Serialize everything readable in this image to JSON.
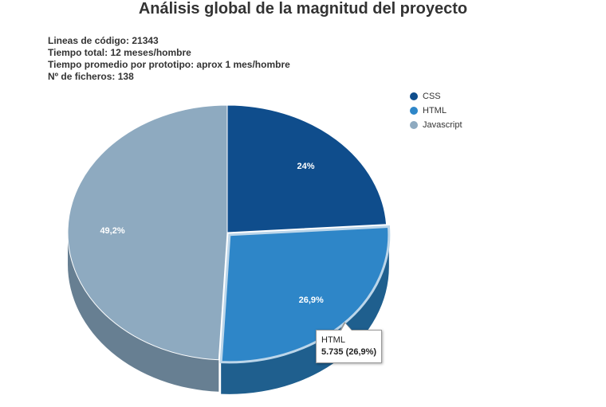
{
  "chart_data": {
    "type": "pie",
    "title": "Análisis global de la magnitud del proyecto",
    "subtitle_lines": [
      "Lineas de código: 21343",
      "Tiempo total: 12 meses/hombre",
      "Tiempo promedio por prototipo: aprox 1 mes/hombre",
      "Nº de ficheros: 138"
    ],
    "slices": [
      {
        "name": "CSS",
        "percent": 24,
        "label": "24%",
        "color": "#0f4d8c",
        "side_color": "#0a3662"
      },
      {
        "name": "HTML",
        "percent": 26.9,
        "label": "26,9%",
        "color": "#2e86c8",
        "side_color": "#1f5f8e"
      },
      {
        "name": "Javascript",
        "percent": 49.2,
        "label": "49,2%",
        "color": "#8eaac0",
        "side_color": "#677f92"
      }
    ],
    "legend_position": "top-right",
    "tooltip": {
      "series": "HTML",
      "value": "5.735 (26,9%)"
    }
  }
}
